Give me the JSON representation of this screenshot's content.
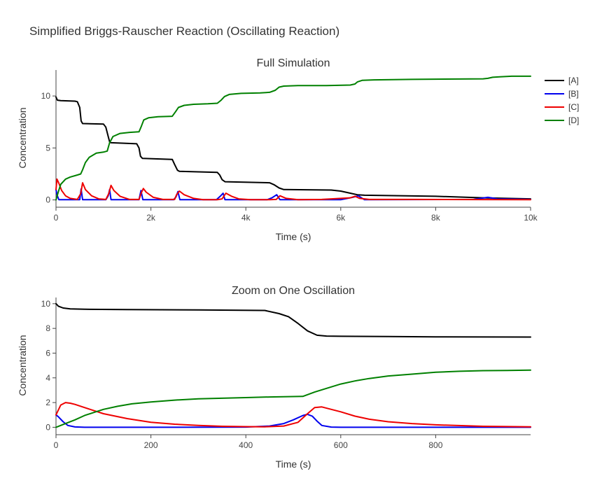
{
  "title": "Simplified Briggs-Rauscher Reaction (Oscillating Reaction)",
  "legend": [
    {
      "label": "[A]",
      "color": "#000000"
    },
    {
      "label": "[B]",
      "color": "#0000ee"
    },
    {
      "label": "[C]",
      "color": "#ee0000"
    },
    {
      "label": "[D]",
      "color": "#008000"
    }
  ],
  "chart_data": [
    {
      "type": "line",
      "title": "Full Simulation",
      "xlabel": "Time (s)",
      "ylabel": "Concentration",
      "xlim": [
        0,
        10000
      ],
      "ylim": [
        -0.7,
        12.5
      ],
      "xticks": [
        0,
        2000,
        4000,
        6000,
        8000,
        10000
      ],
      "xtick_labels": [
        "0",
        "2k",
        "4k",
        "6k",
        "8k",
        "10k"
      ],
      "yticks": [
        0,
        5,
        10
      ],
      "ytick_labels": [
        "0",
        "5",
        "10"
      ],
      "series": [
        {
          "name": "[A]",
          "color": "#000000",
          "x": [
            0,
            30,
            100,
            400,
            450,
            500,
            530,
            560,
            1000,
            1050,
            1100,
            1130,
            1160,
            1700,
            1750,
            1780,
            1820,
            2450,
            2500,
            2560,
            2600,
            3400,
            3450,
            3500,
            3560,
            4500,
            4600,
            4700,
            4800,
            5800,
            6000,
            6200,
            6350,
            6500,
            8000,
            9000,
            10000
          ],
          "y": [
            9.9,
            9.6,
            9.55,
            9.5,
            9.45,
            8.9,
            7.6,
            7.35,
            7.3,
            7.0,
            6.1,
            5.6,
            5.5,
            5.4,
            5.0,
            4.2,
            4.0,
            3.9,
            3.4,
            2.85,
            2.75,
            2.65,
            2.4,
            1.95,
            1.75,
            1.65,
            1.45,
            1.15,
            1.0,
            0.95,
            0.85,
            0.65,
            0.5,
            0.45,
            0.35,
            0.2,
            0.1
          ]
        },
        {
          "name": "[B]",
          "color": "#0000ee",
          "x": [
            0,
            20,
            60,
            500,
            530,
            560,
            1050,
            1100,
            1130,
            1160,
            1750,
            1790,
            1830,
            2480,
            2530,
            2570,
            2610,
            3380,
            3460,
            3520,
            3560,
            4450,
            4550,
            4650,
            4720,
            6000,
            6250,
            6370,
            6500,
            8800,
            9100,
            9300,
            10000
          ],
          "y": [
            1.0,
            0.5,
            0.02,
            0.02,
            1.05,
            0.02,
            0.02,
            0.4,
            1.0,
            0.02,
            0.02,
            0.9,
            0.02,
            0.02,
            0.3,
            0.8,
            0.02,
            0.02,
            0.35,
            0.65,
            0.02,
            0.02,
            0.2,
            0.5,
            0.02,
            0.02,
            0.25,
            0.4,
            0.02,
            0.05,
            0.25,
            0.1,
            0.05
          ]
        },
        {
          "name": "[C]",
          "color": "#ee0000",
          "x": [
            0,
            20,
            60,
            120,
            200,
            300,
            450,
            520,
            560,
            620,
            750,
            900,
            1050,
            1110,
            1160,
            1220,
            1350,
            1550,
            1750,
            1800,
            1840,
            1900,
            2050,
            2250,
            2500,
            2540,
            2600,
            2700,
            2900,
            3100,
            3400,
            3500,
            3580,
            3700,
            3850,
            4100,
            4500,
            4640,
            4720,
            4850,
            5100,
            5600,
            6200,
            6300,
            6400,
            6600,
            7500,
            10000
          ],
          "y": [
            1.0,
            2.0,
            1.6,
            0.9,
            0.4,
            0.15,
            0.05,
            0.6,
            1.65,
            1.0,
            0.4,
            0.1,
            0.05,
            0.6,
            1.4,
            0.9,
            0.35,
            0.05,
            0.05,
            0.7,
            1.1,
            0.75,
            0.25,
            0.05,
            0.05,
            0.5,
            0.85,
            0.5,
            0.15,
            0.02,
            0.02,
            0.1,
            0.65,
            0.35,
            0.1,
            0.02,
            0.02,
            0.05,
            0.4,
            0.15,
            0.02,
            0.05,
            0.2,
            0.35,
            0.15,
            0.05,
            0.05,
            0.02
          ]
        },
        {
          "name": "[D]",
          "color": "#008000",
          "x": [
            0,
            50,
            100,
            200,
            300,
            450,
            520,
            560,
            620,
            700,
            850,
            1000,
            1080,
            1130,
            1200,
            1350,
            1550,
            1750,
            1800,
            1850,
            1950,
            2150,
            2450,
            2520,
            2580,
            2700,
            2900,
            3200,
            3400,
            3480,
            3550,
            3650,
            3900,
            4300,
            4500,
            4620,
            4700,
            4800,
            5100,
            5700,
            6200,
            6300,
            6350,
            6450,
            6700,
            7500,
            9000,
            9100,
            9200,
            9350,
            9600,
            10000
          ],
          "y": [
            0.0,
            0.8,
            1.5,
            2.0,
            2.2,
            2.4,
            2.5,
            2.9,
            3.6,
            4.1,
            4.5,
            4.6,
            4.7,
            5.5,
            6.1,
            6.4,
            6.5,
            6.55,
            7.1,
            7.7,
            7.9,
            8.0,
            8.05,
            8.5,
            8.9,
            9.1,
            9.2,
            9.25,
            9.3,
            9.6,
            9.95,
            10.15,
            10.25,
            10.3,
            10.35,
            10.55,
            10.85,
            10.95,
            11.0,
            11.0,
            11.05,
            11.15,
            11.35,
            11.5,
            11.55,
            11.6,
            11.65,
            11.7,
            11.8,
            11.85,
            11.9,
            11.9
          ]
        }
      ]
    },
    {
      "type": "line",
      "title": "Zoom on One Oscillation",
      "xlabel": "Time (s)",
      "ylabel": "Concentration",
      "xlim": [
        0,
        1000
      ],
      "ylim": [
        -0.6,
        10.5
      ],
      "xticks": [
        0,
        200,
        400,
        600,
        800
      ],
      "xtick_labels": [
        "0",
        "200",
        "400",
        "600",
        "800"
      ],
      "yticks": [
        0,
        2,
        4,
        6,
        8,
        10
      ],
      "ytick_labels": [
        "0",
        "2",
        "4",
        "6",
        "8",
        "10"
      ],
      "series": [
        {
          "name": "[A]",
          "color": "#000000",
          "x": [
            0,
            5,
            15,
            30,
            60,
            150,
            300,
            440,
            470,
            490,
            510,
            530,
            550,
            570,
            600,
            700,
            800,
            1000
          ],
          "y": [
            10.0,
            9.8,
            9.65,
            9.58,
            9.55,
            9.52,
            9.5,
            9.45,
            9.2,
            8.95,
            8.4,
            7.8,
            7.45,
            7.38,
            7.36,
            7.34,
            7.32,
            7.3
          ]
        },
        {
          "name": "[B]",
          "color": "#0000ee",
          "x": [
            0,
            5,
            15,
            25,
            40,
            60,
            100,
            200,
            400,
            450,
            480,
            500,
            520,
            530,
            540,
            550,
            560,
            580,
            600,
            700,
            800,
            1000
          ],
          "y": [
            1.0,
            0.85,
            0.45,
            0.15,
            0.03,
            0.0,
            0.0,
            0.0,
            0.02,
            0.1,
            0.3,
            0.6,
            0.95,
            1.05,
            0.9,
            0.5,
            0.15,
            0.02,
            0.0,
            0.0,
            0.0,
            0.0
          ]
        },
        {
          "name": "[C]",
          "color": "#ee0000",
          "x": [
            0,
            10,
            20,
            30,
            40,
            60,
            100,
            150,
            200,
            250,
            300,
            350,
            400,
            440,
            480,
            510,
            530,
            545,
            560,
            580,
            600,
            630,
            660,
            700,
            750,
            800,
            900,
            1000
          ],
          "y": [
            1.0,
            1.8,
            2.0,
            1.95,
            1.85,
            1.6,
            1.1,
            0.7,
            0.4,
            0.25,
            0.15,
            0.08,
            0.05,
            0.04,
            0.1,
            0.4,
            1.1,
            1.6,
            1.65,
            1.45,
            1.25,
            0.9,
            0.65,
            0.45,
            0.3,
            0.2,
            0.08,
            0.04
          ]
        },
        {
          "name": "[D]",
          "color": "#008000",
          "x": [
            0,
            20,
            40,
            60,
            80,
            100,
            130,
            160,
            200,
            250,
            300,
            350,
            400,
            450,
            520,
            545,
            570,
            600,
            630,
            660,
            700,
            750,
            800,
            850,
            900,
            950,
            1000
          ],
          "y": [
            0.0,
            0.3,
            0.6,
            0.95,
            1.2,
            1.45,
            1.7,
            1.9,
            2.05,
            2.2,
            2.3,
            2.35,
            2.4,
            2.45,
            2.5,
            2.85,
            3.15,
            3.5,
            3.75,
            3.95,
            4.15,
            4.3,
            4.45,
            4.53,
            4.58,
            4.6,
            4.62
          ]
        }
      ]
    }
  ]
}
